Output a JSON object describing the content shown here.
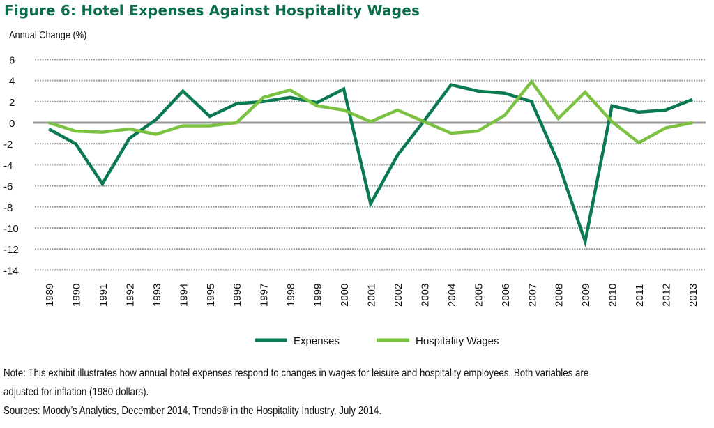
{
  "title": "Figure 6: Hotel Expenses Against Hospitality Wages",
  "note": "Note: This exhibit illustrates how annual hotel expenses respond to changes in wages for leisure and hospitality employees.  Both variables are",
  "note_cont": "adjusted for inflation (1980 dollars).",
  "sources": "Sources: Moody’s Analytics, December 2014, Trends® in the Hospitality Industry, July 2014.",
  "chart_data": {
    "type": "line",
    "title": "Figure 6: Hotel Expenses Against Hospitality Wages",
    "xlabel": "",
    "ylabel": "Annual Change (%)",
    "ylim": [
      -14,
      6
    ],
    "yticks": [
      "6",
      "4",
      "2",
      "0",
      "-2",
      "-4",
      "-6",
      "-8",
      "-10",
      "-12",
      "-14"
    ],
    "grid": "horizontal dotted",
    "legend": "bottom",
    "x": [
      "1989",
      "1990",
      "1991",
      "1992",
      "1993",
      "1994",
      "1995",
      "1996",
      "1997",
      "1998",
      "1999",
      "2000",
      "2001",
      "2002",
      "2003",
      "2004",
      "2005",
      "2006",
      "2007",
      "2008",
      "2009",
      "2010",
      "2011",
      "2012",
      "2013"
    ],
    "series": [
      {
        "name": "Expenses",
        "color": "#0b7a50",
        "values": [
          -0.6,
          -2.0,
          -5.8,
          -1.5,
          0.3,
          3.0,
          0.6,
          1.8,
          2.0,
          2.4,
          1.9,
          3.2,
          -7.7,
          -3.1,
          0.2,
          3.6,
          3.0,
          2.8,
          2.0,
          -3.8,
          -11.3,
          1.6,
          1.0,
          1.2,
          2.2
        ]
      },
      {
        "name": "Hospitality Wages",
        "color": "#7cc242",
        "values": [
          0.0,
          -0.8,
          -0.9,
          -0.6,
          -1.1,
          -0.3,
          -0.3,
          0.0,
          2.4,
          3.1,
          1.6,
          1.2,
          0.1,
          1.2,
          0.1,
          -1.0,
          -0.8,
          0.7,
          3.9,
          0.4,
          2.9,
          0.1,
          -1.9,
          -0.5,
          0.0
        ]
      }
    ]
  }
}
